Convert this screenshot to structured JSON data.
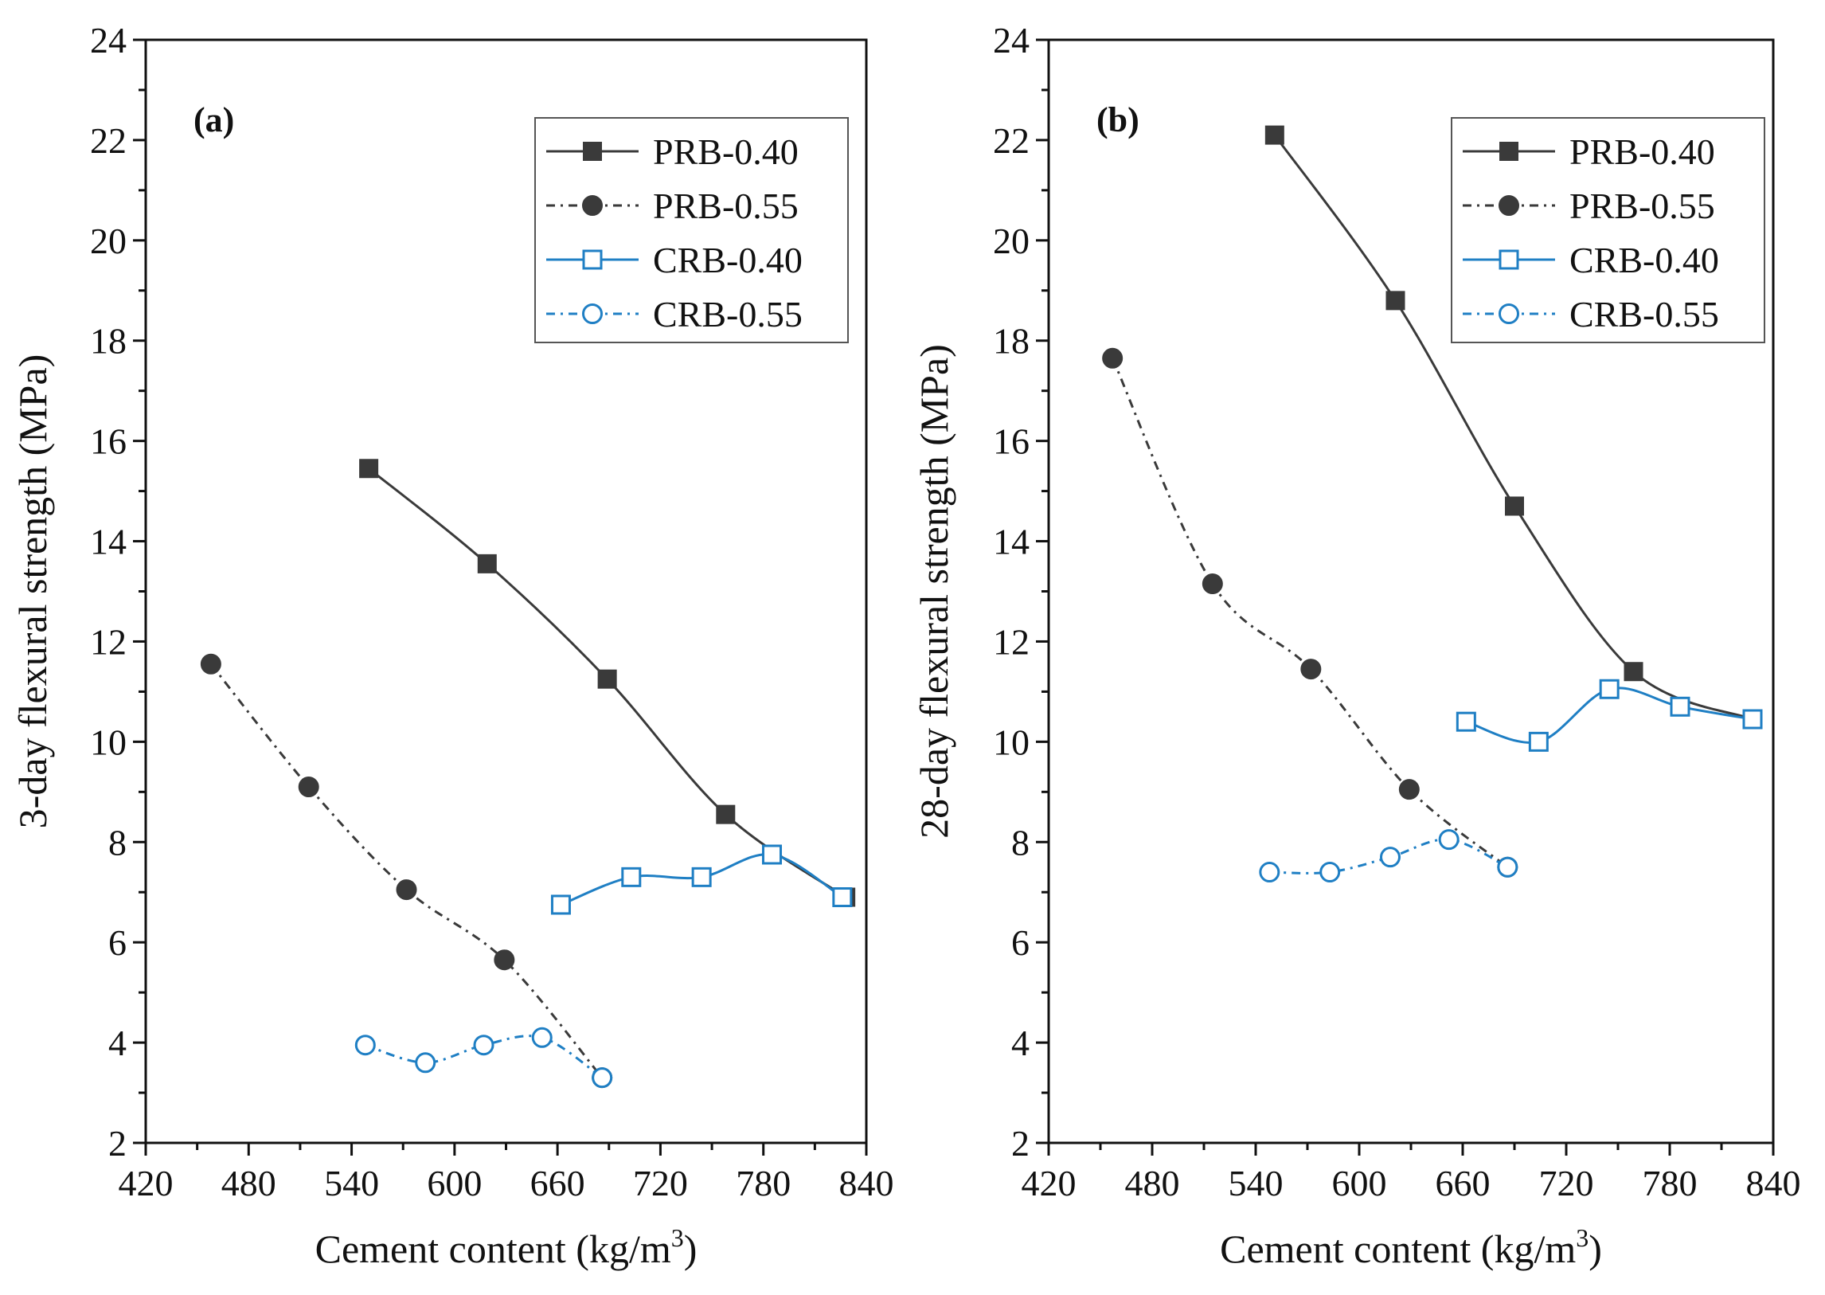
{
  "colors": {
    "prb": "#3a3a3a",
    "prb_marker": "#3c3c3c",
    "crb": "#1f7fc4",
    "axis": "#111111"
  },
  "chart_data": [
    {
      "type": "line",
      "panel_label": "(a)",
      "xlabel": "Cement content (kg/m",
      "xlabel_sup": "3",
      "xlabel_end": ")",
      "ylabel": "3-day flexural strength (MPa)",
      "xlim": [
        420,
        840
      ],
      "ylim": [
        2,
        24
      ],
      "xticks": [
        420,
        480,
        540,
        600,
        660,
        720,
        780,
        840
      ],
      "yticks": [
        2,
        4,
        6,
        8,
        10,
        12,
        14,
        16,
        18,
        20,
        22,
        24
      ],
      "legend_position": "top-right",
      "series": [
        {
          "name": "PRB-0.40",
          "marker": "square-filled",
          "line": "solid",
          "color": "#3a3a3a",
          "x": [
            550,
            619,
            689,
            758,
            828
          ],
          "y": [
            15.45,
            13.55,
            11.25,
            8.55,
            6.9
          ]
        },
        {
          "name": "PRB-0.55",
          "marker": "circle-filled",
          "line": "dashdot",
          "color": "#3a3a3a",
          "x": [
            458,
            515,
            572,
            629,
            686
          ],
          "y": [
            11.55,
            9.1,
            7.05,
            5.65,
            3.3
          ]
        },
        {
          "name": "CRB-0.40",
          "marker": "square-open",
          "line": "solid",
          "color": "#1f7fc4",
          "x": [
            662,
            703,
            744,
            785,
            826
          ],
          "y": [
            6.75,
            7.3,
            7.3,
            7.75,
            6.9
          ]
        },
        {
          "name": "CRB-0.55",
          "marker": "circle-open",
          "line": "dashdot",
          "color": "#1f7fc4",
          "x": [
            548,
            583,
            617,
            651,
            686
          ],
          "y": [
            3.95,
            3.6,
            3.95,
            4.1,
            3.3
          ]
        }
      ]
    },
    {
      "type": "line",
      "panel_label": "(b)",
      "xlabel": "Cement content (kg/m",
      "xlabel_sup": "3",
      "xlabel_end": ")",
      "ylabel": "28-day flexural strength (MPa)",
      "xlim": [
        420,
        840
      ],
      "ylim": [
        2,
        24
      ],
      "xticks": [
        420,
        480,
        540,
        600,
        660,
        720,
        780,
        840
      ],
      "yticks": [
        2,
        4,
        6,
        8,
        10,
        12,
        14,
        16,
        18,
        20,
        22,
        24
      ],
      "legend_position": "top-right",
      "series": [
        {
          "name": "PRB-0.40",
          "marker": "square-filled",
          "line": "solid",
          "color": "#3a3a3a",
          "x": [
            551,
            621,
            690,
            759,
            828
          ],
          "y": [
            22.1,
            18.8,
            14.7,
            11.4,
            10.45
          ]
        },
        {
          "name": "PRB-0.55",
          "marker": "circle-filled",
          "line": "dashdot",
          "color": "#3a3a3a",
          "x": [
            457,
            515,
            572,
            629,
            686
          ],
          "y": [
            17.65,
            13.15,
            11.45,
            9.05,
            7.5
          ]
        },
        {
          "name": "CRB-0.40",
          "marker": "square-open",
          "line": "solid",
          "color": "#1f7fc4",
          "x": [
            662,
            704,
            745,
            786,
            828
          ],
          "y": [
            10.4,
            10.0,
            11.05,
            10.7,
            10.45
          ]
        },
        {
          "name": "CRB-0.55",
          "marker": "circle-open",
          "line": "dashdot",
          "color": "#1f7fc4",
          "x": [
            548,
            583,
            618,
            652,
            686
          ],
          "y": [
            7.4,
            7.4,
            7.7,
            8.05,
            7.5
          ]
        }
      ]
    }
  ]
}
